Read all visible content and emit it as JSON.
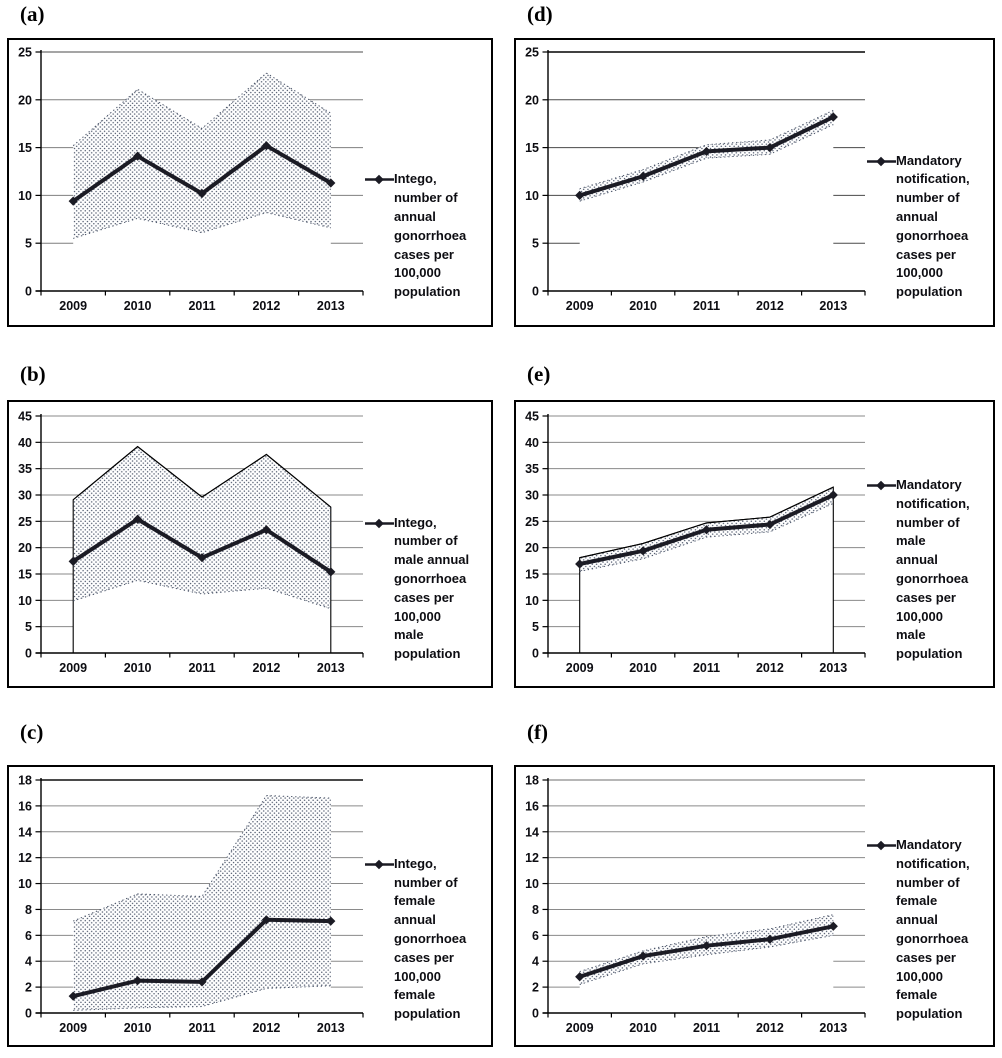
{
  "figure": {
    "background": "#ffffff",
    "columns_theme": {
      "left_source": "Intego",
      "right_source": "Mandatory notification"
    }
  },
  "colors": {
    "series_line": "#1b1b24",
    "band_dots": "#4a5468",
    "band_fill": "#ffffff",
    "grid_default": "#8a8a8a",
    "axis": "#000000",
    "panel_border": "#000000",
    "text": "#0d0d12"
  },
  "chart_data": [
    {
      "id": "a",
      "panel_label": "(a)",
      "type": "line",
      "x_categories": [
        "2009",
        "2010",
        "2011",
        "2012",
        "2013"
      ],
      "yticks": [
        0,
        5,
        10,
        15,
        20,
        25
      ],
      "ylim": [
        0,
        25
      ],
      "grid": true,
      "legend_position": "right",
      "legend_text": "Intego, number of annual gonorrhoea cases per 100,000 population",
      "legend_lines": [
        "Intego,",
        "number of",
        "annual",
        "gonorrhoea",
        "cases per",
        "100,000",
        "population"
      ],
      "series": [
        {
          "name": "rate",
          "values": [
            9.4,
            14.1,
            10.2,
            15.2,
            11.3
          ]
        },
        {
          "name": "band_upper",
          "values": [
            15.2,
            21.1,
            17.0,
            22.8,
            18.6
          ]
        },
        {
          "name": "band_lower",
          "values": [
            5.5,
            7.6,
            6.1,
            8.2,
            6.6
          ]
        }
      ],
      "style": {
        "area_outline": false,
        "upper_solid": false,
        "grid_color": "#7f7f7f",
        "top_grid_color": "#6f6f6f",
        "top_grid_width": 1.2
      }
    },
    {
      "id": "b",
      "panel_label": "(b)",
      "type": "line",
      "x_categories": [
        "2009",
        "2010",
        "2011",
        "2012",
        "2013"
      ],
      "yticks": [
        0,
        5,
        10,
        15,
        20,
        25,
        30,
        35,
        40,
        45
      ],
      "ylim": [
        0,
        45
      ],
      "grid": true,
      "legend_position": "right",
      "legend_text": "Intego, number of male annual gonorrhoea cases per 100,000 male population",
      "legend_lines": [
        "Intego,",
        "number of",
        "male annual",
        "gonorrhoea",
        "cases per",
        "100,000",
        "male",
        "population"
      ],
      "series": [
        {
          "name": "rate",
          "values": [
            17.4,
            25.4,
            18.1,
            23.4,
            15.4
          ]
        },
        {
          "name": "band_upper",
          "values": [
            29.1,
            39.2,
            29.6,
            37.7,
            27.7
          ]
        },
        {
          "name": "band_lower",
          "values": [
            9.9,
            13.8,
            11.2,
            12.3,
            8.4
          ]
        }
      ],
      "style": {
        "area_outline": true,
        "upper_solid": true,
        "grid_color": "#8a8a8a",
        "top_grid_color": "#8a8a8a",
        "top_grid_width": 1
      }
    },
    {
      "id": "c",
      "panel_label": "(c)",
      "type": "line",
      "x_categories": [
        "2009",
        "2010",
        "2011",
        "2012",
        "2013"
      ],
      "yticks": [
        0,
        2,
        4,
        6,
        8,
        10,
        12,
        14,
        16,
        18
      ],
      "ylim": [
        0,
        18
      ],
      "grid": true,
      "legend_position": "right",
      "legend_text": "Intego, number of female annual gonorrhoea cases per 100,000 female population",
      "legend_lines": [
        "Intego,",
        "number of",
        "female",
        "annual",
        "gonorrhoea",
        "cases per",
        "100,000",
        "female",
        "population"
      ],
      "series": [
        {
          "name": "rate",
          "values": [
            1.3,
            2.5,
            2.4,
            7.2,
            7.1
          ]
        },
        {
          "name": "band_upper",
          "values": [
            7.1,
            9.2,
            9.0,
            16.8,
            16.6
          ]
        },
        {
          "name": "band_lower",
          "values": [
            0.2,
            0.4,
            0.5,
            1.9,
            2.1
          ]
        }
      ],
      "style": {
        "area_outline": false,
        "upper_solid": false,
        "grid_color": "#8a8a8a",
        "top_grid_color": "#303030",
        "top_grid_width": 1.8
      }
    },
    {
      "id": "d",
      "panel_label": "(d)",
      "type": "line",
      "x_categories": [
        "2009",
        "2010",
        "2011",
        "2012",
        "2013"
      ],
      "yticks": [
        0,
        5,
        10,
        15,
        20,
        25
      ],
      "ylim": [
        0,
        25
      ],
      "grid": true,
      "legend_position": "right",
      "legend_text": "Mandatory notification, number of annual gonorrhoea cases per 100,000 population",
      "legend_lines": [
        "Mandatory",
        "notification,",
        "number of",
        "annual",
        "gonorrhoea",
        "cases per",
        "100,000",
        "population"
      ],
      "series": [
        {
          "name": "rate",
          "values": [
            10.0,
            12.0,
            14.6,
            15.0,
            18.2
          ]
        },
        {
          "name": "band_upper",
          "values": [
            10.7,
            12.7,
            15.3,
            15.8,
            18.9
          ]
        },
        {
          "name": "band_lower",
          "values": [
            9.4,
            11.4,
            13.9,
            14.3,
            17.4
          ]
        }
      ],
      "style": {
        "area_outline": false,
        "upper_solid": false,
        "grid_color": "#4a4a4a",
        "top_grid_color": "#262626",
        "top_grid_width": 1.8
      }
    },
    {
      "id": "e",
      "panel_label": "(e)",
      "type": "line",
      "x_categories": [
        "2009",
        "2010",
        "2011",
        "2012",
        "2013"
      ],
      "yticks": [
        0,
        5,
        10,
        15,
        20,
        25,
        30,
        35,
        40,
        45
      ],
      "ylim": [
        0,
        45
      ],
      "grid": true,
      "legend_position": "right",
      "legend_text": "Mandatory notification, number of male annual gonorrhoea cases per 100,000 male population",
      "legend_lines": [
        "Mandatory",
        "notification,",
        "number of",
        "male",
        "annual",
        "gonorrhoea",
        "cases per",
        "100,000",
        "male",
        "population"
      ],
      "series": [
        {
          "name": "rate",
          "values": [
            16.9,
            19.4,
            23.4,
            24.4,
            30.0
          ]
        },
        {
          "name": "band_upper",
          "values": [
            18.1,
            20.8,
            24.7,
            25.8,
            31.5
          ]
        },
        {
          "name": "band_lower",
          "values": [
            15.5,
            17.9,
            22.0,
            23.0,
            28.4
          ]
        }
      ],
      "style": {
        "area_outline": true,
        "upper_solid": true,
        "grid_color": "#8a8a8a",
        "top_grid_color": "#8a8a8a",
        "top_grid_width": 1
      }
    },
    {
      "id": "f",
      "panel_label": "(f)",
      "type": "line",
      "x_categories": [
        "2009",
        "2010",
        "2011",
        "2012",
        "2013"
      ],
      "yticks": [
        0,
        2,
        4,
        6,
        8,
        10,
        12,
        14,
        16,
        18
      ],
      "ylim": [
        0,
        18
      ],
      "grid": true,
      "legend_position": "right",
      "legend_text": "Mandatory notification, number of female annual gonorrhoea cases per 100,000 female population",
      "legend_lines": [
        "Mandatory",
        "notification,",
        "number of",
        "female",
        "annual",
        "gonorrhoea",
        "cases per",
        "100,000",
        "female",
        "population"
      ],
      "series": [
        {
          "name": "rate",
          "values": [
            2.8,
            4.4,
            5.2,
            5.7,
            6.7
          ]
        },
        {
          "name": "band_upper",
          "values": [
            3.2,
            4.8,
            5.9,
            6.5,
            7.6
          ]
        },
        {
          "name": "band_lower",
          "values": [
            2.2,
            3.8,
            4.5,
            5.1,
            6.0
          ]
        }
      ],
      "style": {
        "area_outline": false,
        "upper_solid": false,
        "grid_color": "#8a8a8a",
        "top_grid_color": "#8a8a8a",
        "top_grid_width": 1.2
      }
    }
  ]
}
